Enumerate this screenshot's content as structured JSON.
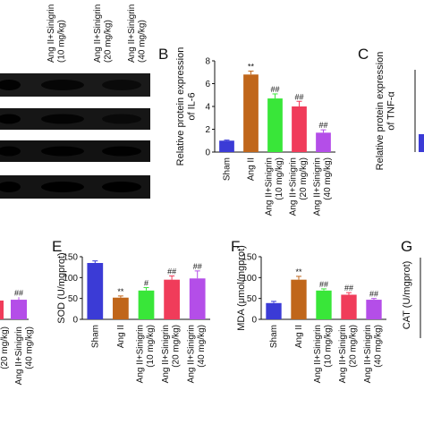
{
  "western_blot": {
    "lane_labels": [
      "Ang II+Sinigrin\n(10 mg/kg)",
      "Ang II+Sinigrin\n(20 mg/kg)",
      "Ang II+Sinigrin\n(40 mg/kg)"
    ],
    "left_edge_labels": [
      "(20 mg/kg)",
      "(40 mg/kg)"
    ]
  },
  "panels": {
    "B": {
      "letter": "B"
    },
    "C": {
      "letter": "C",
      "ylabel": "Relative protein expression\nof TNF-α"
    },
    "D_partial": {
      "values": [
        null,
        47
      ],
      "sig": [
        "",
        "##"
      ]
    },
    "E": {
      "letter": "E"
    },
    "F": {
      "letter": "F"
    },
    "G": {
      "letter": "G",
      "ylabel": "CAT (U/mgprot)"
    }
  },
  "colors": {
    "sham": "#3b3bd6",
    "angII": "#c0661a",
    "sin10": "#39e639",
    "sin20": "#f03c5a",
    "sin40": "#b44ee8",
    "axis": "#111111"
  },
  "chart_data": [
    {
      "type": "bar",
      "panel": "B",
      "categories": [
        "Sham",
        "Ang II",
        "Ang II+Sinigrin\n(10 mg/kg)",
        "Ang II+Sinigrin\n(20 mg/kg)",
        "Ang II+Sinigrin\n(40 mg/kg)"
      ],
      "values": [
        1.0,
        6.8,
        4.7,
        4.0,
        1.7
      ],
      "errors": [
        0.05,
        0.3,
        0.4,
        0.45,
        0.25
      ],
      "significance": [
        "",
        "**",
        "##",
        "##",
        "##"
      ],
      "ylabel": "Relative protein expression\nof IL-6",
      "ylim": [
        0,
        8
      ],
      "yticks": [
        0,
        2,
        4,
        6,
        8
      ]
    },
    {
      "type": "bar",
      "panel": "E",
      "categories": [
        "Sham",
        "Ang II",
        "Ang II+Sinigrin\n(10 mg/kg)",
        "Ang II+Sinigrin\n(20 mg/kg)",
        "Ang II+Sinigrin\n(40 mg/kg)"
      ],
      "values": [
        135,
        52,
        69,
        95,
        98
      ],
      "errors": [
        5,
        4,
        7,
        9,
        18
      ],
      "significance": [
        "",
        "**",
        "#",
        "##",
        "##"
      ],
      "ylabel": "SOD (U/mgprot)",
      "ylim": [
        0,
        150
      ],
      "yticks": [
        0,
        50,
        100,
        150
      ]
    },
    {
      "type": "bar",
      "panel": "F",
      "categories": [
        "Sham",
        "Ang II",
        "Ang II+Sinigrin\n(10 mg/kg)",
        "Ang II+Sinigrin\n(20 mg/kg)",
        "Ang II+Sinigrin\n(40 mg/kg)"
      ],
      "values": [
        39,
        95,
        69,
        59,
        47
      ],
      "errors": [
        4,
        8,
        4,
        5,
        3
      ],
      "significance": [
        "",
        "**",
        "##",
        "##",
        "##"
      ],
      "ylabel": "MDA (μmol/mgprot)",
      "ylim": [
        0,
        150
      ],
      "yticks": [
        0,
        50,
        100,
        150
      ]
    }
  ]
}
